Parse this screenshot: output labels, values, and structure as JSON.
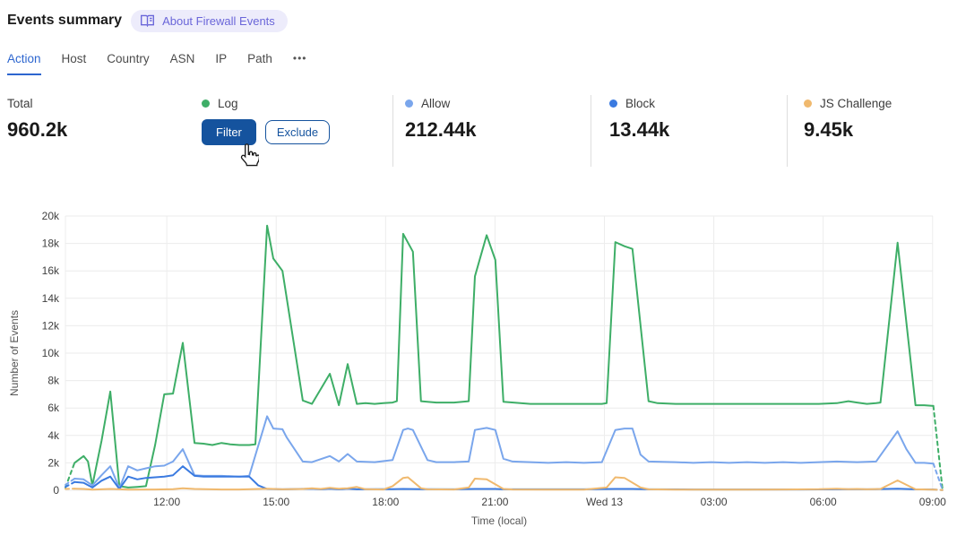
{
  "header": {
    "title": "Events summary",
    "badge": {
      "icon": "book-icon",
      "label": "About Firewall Events"
    }
  },
  "tabs": {
    "items": [
      {
        "label": "Action",
        "active": true
      },
      {
        "label": "Host",
        "active": false
      },
      {
        "label": "Country",
        "active": false
      },
      {
        "label": "ASN",
        "active": false
      },
      {
        "label": "IP",
        "active": false
      },
      {
        "label": "Path",
        "active": false
      }
    ],
    "more_label": "•••"
  },
  "stats": {
    "columns": [
      {
        "key": "total",
        "label": "Total",
        "value": "960.2k"
      },
      {
        "key": "log",
        "label": "Log",
        "dot_color": "#3eae67",
        "buttons": [
          {
            "label": "Filter"
          },
          {
            "label": "Exclude"
          }
        ]
      },
      {
        "key": "allow",
        "label": "Allow",
        "dot_color": "#7aa6ec",
        "value": "212.44k"
      },
      {
        "key": "block",
        "label": "Block",
        "dot_color": "#3a7ae0",
        "value": "13.44k"
      },
      {
        "key": "js_challenge",
        "label": "JS Challenge",
        "dot_color": "#f0b96e",
        "value": "9.45k"
      }
    ]
  },
  "colors": {
    "accent_blue": "#15539e",
    "tab_active_blue": "#2d66cf",
    "badge_purple": "#6a66d9",
    "gridline": "#ededed"
  },
  "chart_data": {
    "type": "line",
    "xlabel": "Time (local)",
    "ylabel": "Number of Events",
    "x_unit": "hours_since_tuesday_midnight_local",
    "y_unit": "thousands_of_events",
    "xlim": [
      9.22,
      33.3
    ],
    "ylim": [
      0,
      20
    ],
    "grid": true,
    "x_ticks": [
      {
        "v": 12,
        "label": "12:00"
      },
      {
        "v": 15,
        "label": "15:00"
      },
      {
        "v": 18,
        "label": "18:00"
      },
      {
        "v": 21,
        "label": "21:00"
      },
      {
        "v": 24,
        "label": "Wed 13"
      },
      {
        "v": 27,
        "label": "03:00"
      },
      {
        "v": 30,
        "label": "06:00"
      },
      {
        "v": 33,
        "label": "09:00"
      }
    ],
    "y_ticks": [
      {
        "v": 0,
        "label": "0"
      },
      {
        "v": 2,
        "label": "2k"
      },
      {
        "v": 4,
        "label": "4k"
      },
      {
        "v": 6,
        "label": "6k"
      },
      {
        "v": 8,
        "label": "8k"
      },
      {
        "v": 10,
        "label": "10k"
      },
      {
        "v": 12,
        "label": "12k"
      },
      {
        "v": 14,
        "label": "14k"
      },
      {
        "v": 16,
        "label": "16k"
      },
      {
        "v": 18,
        "label": "18k"
      },
      {
        "v": 20,
        "label": "20k"
      }
    ],
    "series": [
      {
        "name": "Log",
        "color": "#3eae67",
        "solid_range": [
          9.47,
          33.02
        ],
        "points": [
          [
            9.22,
            0.2
          ],
          [
            9.47,
            2.0
          ],
          [
            9.72,
            2.5
          ],
          [
            9.84,
            2.1
          ],
          [
            9.96,
            0.35
          ],
          [
            10.21,
            3.6
          ],
          [
            10.45,
            7.2
          ],
          [
            10.7,
            0.3
          ],
          [
            10.94,
            0.2
          ],
          [
            11.19,
            0.25
          ],
          [
            11.43,
            0.3
          ],
          [
            11.68,
            3.3
          ],
          [
            11.93,
            7.0
          ],
          [
            12.17,
            7.05
          ],
          [
            12.44,
            10.75
          ],
          [
            12.76,
            3.45
          ],
          [
            13.01,
            3.4
          ],
          [
            13.25,
            3.3
          ],
          [
            13.5,
            3.45
          ],
          [
            13.74,
            3.35
          ],
          [
            13.99,
            3.3
          ],
          [
            14.26,
            3.3
          ],
          [
            14.43,
            3.35
          ],
          [
            14.75,
            19.3
          ],
          [
            14.92,
            16.9
          ],
          [
            15.17,
            16.0
          ],
          [
            15.73,
            6.55
          ],
          [
            15.98,
            6.3
          ],
          [
            16.47,
            8.5
          ],
          [
            16.72,
            6.2
          ],
          [
            16.96,
            9.2
          ],
          [
            17.21,
            6.3
          ],
          [
            17.45,
            6.35
          ],
          [
            17.7,
            6.3
          ],
          [
            17.94,
            6.35
          ],
          [
            18.19,
            6.4
          ],
          [
            18.31,
            6.5
          ],
          [
            18.48,
            18.7
          ],
          [
            18.75,
            17.4
          ],
          [
            18.97,
            6.5
          ],
          [
            19.39,
            6.4
          ],
          [
            19.88,
            6.4
          ],
          [
            20.28,
            6.5
          ],
          [
            20.45,
            15.6
          ],
          [
            20.77,
            18.6
          ],
          [
            21.01,
            16.8
          ],
          [
            21.23,
            6.45
          ],
          [
            21.97,
            6.3
          ],
          [
            22.46,
            6.3
          ],
          [
            22.95,
            6.3
          ],
          [
            23.44,
            6.3
          ],
          [
            23.93,
            6.3
          ],
          [
            24.06,
            6.35
          ],
          [
            24.3,
            18.1
          ],
          [
            24.55,
            17.8
          ],
          [
            24.77,
            17.6
          ],
          [
            25.21,
            6.5
          ],
          [
            25.46,
            6.35
          ],
          [
            25.95,
            6.3
          ],
          [
            26.44,
            6.3
          ],
          [
            26.93,
            6.3
          ],
          [
            27.42,
            6.3
          ],
          [
            27.91,
            6.3
          ],
          [
            28.4,
            6.3
          ],
          [
            28.9,
            6.3
          ],
          [
            29.39,
            6.3
          ],
          [
            29.88,
            6.3
          ],
          [
            30.37,
            6.35
          ],
          [
            30.69,
            6.5
          ],
          [
            30.93,
            6.4
          ],
          [
            31.2,
            6.3
          ],
          [
            31.45,
            6.35
          ],
          [
            31.57,
            6.4
          ],
          [
            32.04,
            18.05
          ],
          [
            32.53,
            6.2
          ],
          [
            32.77,
            6.2
          ],
          [
            33.02,
            6.15
          ],
          [
            33.27,
            0.1
          ]
        ]
      },
      {
        "name": "Allow",
        "color": "#7aa6ec",
        "solid_range": [
          9.47,
          33.02
        ],
        "points": [
          [
            9.22,
            0.4
          ],
          [
            9.47,
            0.85
          ],
          [
            9.72,
            0.8
          ],
          [
            9.96,
            0.35
          ],
          [
            10.21,
            1.1
          ],
          [
            10.45,
            1.75
          ],
          [
            10.7,
            0.15
          ],
          [
            10.94,
            1.75
          ],
          [
            11.19,
            1.45
          ],
          [
            11.43,
            1.6
          ],
          [
            11.68,
            1.75
          ],
          [
            11.93,
            1.8
          ],
          [
            12.17,
            2.1
          ],
          [
            12.44,
            3.0
          ],
          [
            12.76,
            1.1
          ],
          [
            13.01,
            1.05
          ],
          [
            13.5,
            1.05
          ],
          [
            13.99,
            1.0
          ],
          [
            14.26,
            1.05
          ],
          [
            14.75,
            5.4
          ],
          [
            14.92,
            4.5
          ],
          [
            15.17,
            4.45
          ],
          [
            15.29,
            3.85
          ],
          [
            15.73,
            2.1
          ],
          [
            15.98,
            2.05
          ],
          [
            16.47,
            2.5
          ],
          [
            16.72,
            2.1
          ],
          [
            16.96,
            2.65
          ],
          [
            17.21,
            2.1
          ],
          [
            17.7,
            2.05
          ],
          [
            18.19,
            2.2
          ],
          [
            18.48,
            4.4
          ],
          [
            18.61,
            4.5
          ],
          [
            18.75,
            4.4
          ],
          [
            19.15,
            2.2
          ],
          [
            19.39,
            2.05
          ],
          [
            19.88,
            2.05
          ],
          [
            20.28,
            2.1
          ],
          [
            20.45,
            4.4
          ],
          [
            20.77,
            4.55
          ],
          [
            21.01,
            4.4
          ],
          [
            21.23,
            2.3
          ],
          [
            21.48,
            2.1
          ],
          [
            21.97,
            2.05
          ],
          [
            22.46,
            2.0
          ],
          [
            22.95,
            2.05
          ],
          [
            23.44,
            2.0
          ],
          [
            23.93,
            2.05
          ],
          [
            24.3,
            4.4
          ],
          [
            24.55,
            4.5
          ],
          [
            24.77,
            4.5
          ],
          [
            24.99,
            2.6
          ],
          [
            25.21,
            2.1
          ],
          [
            25.95,
            2.05
          ],
          [
            26.44,
            2.0
          ],
          [
            26.93,
            2.05
          ],
          [
            27.42,
            2.0
          ],
          [
            27.91,
            2.05
          ],
          [
            28.4,
            2.0
          ],
          [
            28.9,
            2.05
          ],
          [
            29.39,
            2.0
          ],
          [
            29.88,
            2.05
          ],
          [
            30.37,
            2.1
          ],
          [
            30.93,
            2.05
          ],
          [
            31.45,
            2.1
          ],
          [
            32.04,
            4.3
          ],
          [
            32.28,
            3.0
          ],
          [
            32.53,
            2.0
          ],
          [
            32.77,
            2.0
          ],
          [
            33.02,
            1.95
          ],
          [
            33.27,
            0.05
          ]
        ]
      },
      {
        "name": "Block",
        "color": "#3a7ae0",
        "solid_range": [
          9.47,
          33.02
        ],
        "points": [
          [
            9.22,
            0.25
          ],
          [
            9.47,
            0.6
          ],
          [
            9.72,
            0.55
          ],
          [
            9.96,
            0.2
          ],
          [
            10.21,
            0.7
          ],
          [
            10.45,
            1.0
          ],
          [
            10.7,
            0.1
          ],
          [
            10.94,
            1.0
          ],
          [
            11.19,
            0.8
          ],
          [
            11.43,
            0.9
          ],
          [
            11.68,
            0.95
          ],
          [
            11.93,
            1.0
          ],
          [
            12.17,
            1.1
          ],
          [
            12.44,
            1.75
          ],
          [
            12.76,
            1.05
          ],
          [
            13.01,
            1.0
          ],
          [
            13.5,
            1.0
          ],
          [
            13.99,
            1.0
          ],
          [
            14.26,
            1.0
          ],
          [
            14.51,
            0.35
          ],
          [
            14.75,
            0.1
          ],
          [
            15.17,
            0.07
          ],
          [
            15.98,
            0.12
          ],
          [
            16.22,
            0.07
          ],
          [
            16.47,
            0.12
          ],
          [
            16.72,
            0.07
          ],
          [
            16.96,
            0.12
          ],
          [
            17.21,
            0.07
          ],
          [
            17.7,
            0.08
          ],
          [
            18.19,
            0.08
          ],
          [
            18.48,
            0.1
          ],
          [
            18.97,
            0.08
          ],
          [
            19.88,
            0.07
          ],
          [
            20.45,
            0.1
          ],
          [
            21.01,
            0.1
          ],
          [
            21.23,
            0.07
          ],
          [
            22.46,
            0.07
          ],
          [
            23.44,
            0.07
          ],
          [
            24.3,
            0.1
          ],
          [
            24.77,
            0.1
          ],
          [
            25.21,
            0.07
          ],
          [
            26.44,
            0.06
          ],
          [
            27.42,
            0.06
          ],
          [
            28.4,
            0.06
          ],
          [
            29.39,
            0.06
          ],
          [
            30.37,
            0.07
          ],
          [
            31.45,
            0.08
          ],
          [
            32.04,
            0.12
          ],
          [
            32.53,
            0.07
          ],
          [
            33.02,
            0.06
          ],
          [
            33.27,
            0.02
          ]
        ]
      },
      {
        "name": "JS Challenge",
        "color": "#f0b96e",
        "solid_range": [
          9.47,
          33.02
        ],
        "points": [
          [
            9.22,
            0.1
          ],
          [
            9.47,
            0.12
          ],
          [
            9.72,
            0.1
          ],
          [
            9.96,
            0.05
          ],
          [
            10.45,
            0.1
          ],
          [
            10.94,
            0.05
          ],
          [
            11.68,
            0.06
          ],
          [
            12.17,
            0.08
          ],
          [
            12.44,
            0.15
          ],
          [
            12.76,
            0.1
          ],
          [
            13.5,
            0.06
          ],
          [
            13.99,
            0.06
          ],
          [
            14.75,
            0.12
          ],
          [
            15.17,
            0.07
          ],
          [
            15.73,
            0.1
          ],
          [
            15.98,
            0.15
          ],
          [
            16.22,
            0.1
          ],
          [
            16.47,
            0.18
          ],
          [
            16.72,
            0.12
          ],
          [
            16.96,
            0.15
          ],
          [
            17.21,
            0.24
          ],
          [
            17.45,
            0.08
          ],
          [
            17.94,
            0.06
          ],
          [
            18.19,
            0.3
          ],
          [
            18.48,
            0.9
          ],
          [
            18.61,
            0.95
          ],
          [
            18.97,
            0.15
          ],
          [
            19.15,
            0.07
          ],
          [
            19.88,
            0.06
          ],
          [
            20.28,
            0.2
          ],
          [
            20.45,
            0.85
          ],
          [
            20.77,
            0.8
          ],
          [
            21.23,
            0.1
          ],
          [
            21.48,
            0.06
          ],
          [
            22.46,
            0.05
          ],
          [
            23.44,
            0.05
          ],
          [
            24.06,
            0.2
          ],
          [
            24.3,
            0.95
          ],
          [
            24.55,
            0.9
          ],
          [
            24.99,
            0.2
          ],
          [
            25.21,
            0.07
          ],
          [
            25.95,
            0.05
          ],
          [
            26.93,
            0.05
          ],
          [
            27.91,
            0.05
          ],
          [
            28.9,
            0.06
          ],
          [
            29.88,
            0.08
          ],
          [
            30.37,
            0.12
          ],
          [
            30.69,
            0.08
          ],
          [
            30.93,
            0.1
          ],
          [
            31.2,
            0.07
          ],
          [
            31.57,
            0.1
          ],
          [
            32.04,
            0.72
          ],
          [
            32.28,
            0.4
          ],
          [
            32.53,
            0.07
          ],
          [
            33.02,
            0.05
          ],
          [
            33.27,
            0.02
          ]
        ]
      }
    ]
  }
}
